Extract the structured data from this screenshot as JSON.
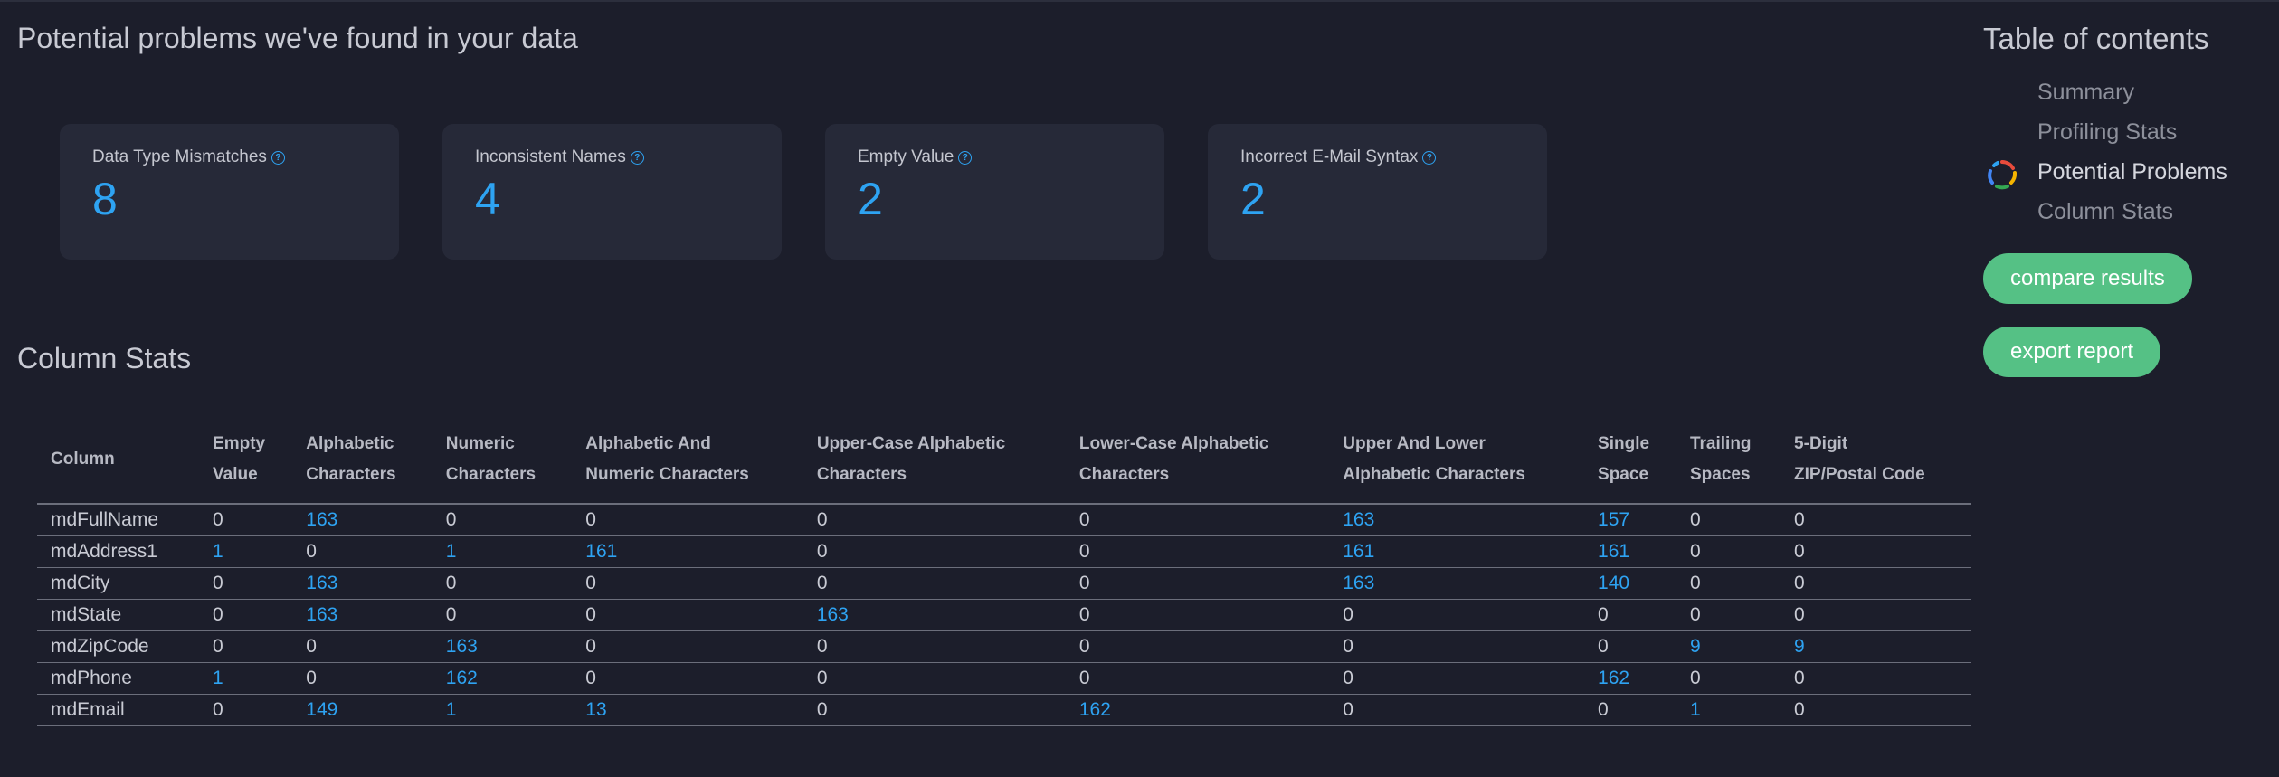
{
  "problems": {
    "title": "Potential problems we've found in your data",
    "cards": [
      {
        "label": "Data Type Mismatches",
        "value": "8",
        "icon": "help-icon"
      },
      {
        "label": "Inconsistent Names",
        "value": "4",
        "icon": "help-icon"
      },
      {
        "label": "Empty Value",
        "value": "2",
        "icon": "help-icon"
      },
      {
        "label": "Incorrect E-Mail Syntax",
        "value": "2",
        "icon": "help-icon"
      }
    ]
  },
  "column_stats": {
    "title": "Column Stats",
    "headers": [
      [
        "Column"
      ],
      [
        "Empty",
        "Value"
      ],
      [
        "Alphabetic",
        "Characters"
      ],
      [
        "Numeric",
        "Characters"
      ],
      [
        "Alphabetic And",
        "Numeric Characters"
      ],
      [
        "Upper-Case Alphabetic",
        "Characters"
      ],
      [
        "Lower-Case Alphabetic",
        "Characters"
      ],
      [
        "Upper And Lower",
        "Alphabetic Characters"
      ],
      [
        "Single",
        "Space"
      ],
      [
        "Trailing",
        "Spaces"
      ],
      [
        "5-Digit",
        "ZIP/Postal Code"
      ]
    ],
    "rows": [
      [
        "mdFullName",
        "0",
        "163",
        "0",
        "0",
        "0",
        "0",
        "163",
        "157",
        "0",
        "0"
      ],
      [
        "mdAddress1",
        "1",
        "0",
        "1",
        "161",
        "0",
        "0",
        "161",
        "161",
        "0",
        "0"
      ],
      [
        "mdCity",
        "0",
        "163",
        "0",
        "0",
        "0",
        "0",
        "163",
        "140",
        "0",
        "0"
      ],
      [
        "mdState",
        "0",
        "163",
        "0",
        "0",
        "163",
        "0",
        "0",
        "0",
        "0",
        "0"
      ],
      [
        "mdZipCode",
        "0",
        "0",
        "163",
        "0",
        "0",
        "0",
        "0",
        "0",
        "9",
        "9"
      ],
      [
        "mdPhone",
        "1",
        "0",
        "162",
        "0",
        "0",
        "0",
        "0",
        "162",
        "0",
        "0"
      ],
      [
        "mdEmail",
        "0",
        "149",
        "1",
        "13",
        "0",
        "162",
        "0",
        "0",
        "1",
        "0"
      ]
    ]
  },
  "toc": {
    "title": "Table of contents",
    "items": [
      {
        "label": "Summary",
        "active": false
      },
      {
        "label": "Profiling Stats",
        "active": false
      },
      {
        "label": "Potential Problems",
        "active": true
      },
      {
        "label": "Column Stats",
        "active": false
      }
    ],
    "active_icon": "loading-spinner-icon",
    "compare_button": "compare results",
    "export_button": "export report"
  },
  "colors": {
    "background": "#1c1e2b",
    "card_background": "#262938",
    "accent_blue": "#2ea3f2",
    "button_green": "#55c185"
  }
}
